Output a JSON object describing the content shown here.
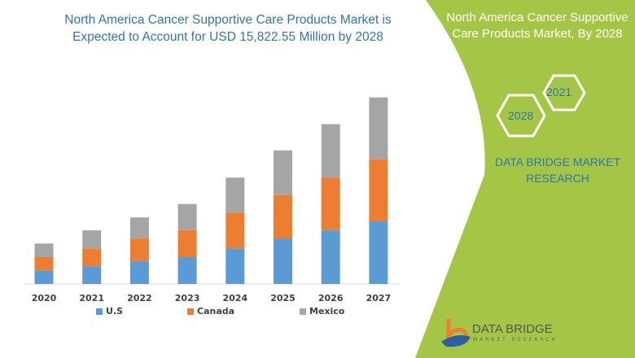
{
  "header": {
    "title": "North America Cancer Supportive Care Products Market is Expected to Account for USD 15,822.55 Million by 2028"
  },
  "side_panel": {
    "title": "North America Cancer Supportive Care Products Market, By 2028",
    "hex_labels": [
      "2021",
      "2028"
    ],
    "brand": "DATA BRIDGE MARKET RESEARCH",
    "accent": "#a5c644"
  },
  "logo": {
    "name": "DATA BRIDGE",
    "tagline": "MARKET RESEARCH"
  },
  "chart_data": {
    "type": "bar",
    "stacked": true,
    "title": "",
    "xlabel": "",
    "ylabel": "",
    "categories": [
      "2020",
      "2021",
      "2022",
      "2023",
      "2024",
      "2025",
      "2026",
      "2027"
    ],
    "series": [
      {
        "name": "U.S",
        "color": "#5b9bd5",
        "values": [
          16,
          21,
          27,
          31.7,
          42,
          53.3,
          63.7,
          74
        ]
      },
      {
        "name": "Canada",
        "color": "#ed7d31",
        "values": [
          15.7,
          21,
          26.3,
          32,
          42.3,
          51.7,
          62,
          73.3
        ]
      },
      {
        "name": "Mexico",
        "color": "#a5a5a5",
        "values": [
          16,
          21.3,
          25.3,
          30.7,
          41.3,
          52.7,
          63,
          73
        ]
      }
    ],
    "ylim": [
      0,
      220
    ],
    "grid": false,
    "legend": "bottom"
  }
}
